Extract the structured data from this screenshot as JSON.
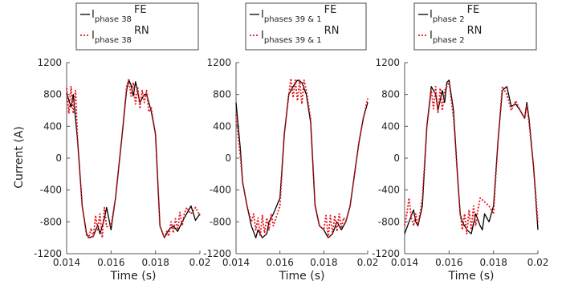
{
  "figure": {
    "ylabel_shared": "Current (A)"
  },
  "style": {
    "fe_color": "#000000",
    "rn_color": "#e8141c",
    "axis_color": "#555555"
  },
  "chart_data": [
    {
      "type": "line",
      "xlabel": "Time (s)",
      "ylabel": "Current (A)",
      "xlim": [
        0.014,
        0.02
      ],
      "ylim": [
        -1200,
        1200
      ],
      "xticks": [
        0.014,
        0.016,
        0.018,
        0.02
      ],
      "xtick_labels": [
        "0.014",
        "0.016",
        "0.018",
        "0.02"
      ],
      "yticks": [
        -1200,
        -800,
        -400,
        0,
        400,
        800,
        1200
      ],
      "ytick_labels": [
        "-1200",
        "-800",
        "-400",
        "0",
        "400",
        "800",
        "1200"
      ],
      "legend": [
        {
          "main": "I",
          "sub": "phase 38",
          "sup": "FE",
          "style": "solid"
        },
        {
          "main": "I",
          "sub": "phase 38",
          "sup": "RN",
          "style": "dotted"
        }
      ],
      "series": [
        {
          "name": "FE",
          "x": [
            0.014,
            0.0142,
            0.0143,
            0.0145,
            0.0147,
            0.0149,
            0.015,
            0.0152,
            0.0154,
            0.0155,
            0.0157,
            0.0158,
            0.016,
            0.0162,
            0.0165,
            0.0167,
            0.0168,
            0.0169,
            0.017,
            0.0171,
            0.0173,
            0.0175,
            0.0176,
            0.0178,
            0.018,
            0.0182,
            0.0184,
            0.0185,
            0.0186,
            0.0188,
            0.019,
            0.0192,
            0.0194,
            0.0196,
            0.0198,
            0.02
          ],
          "y": [
            820,
            640,
            800,
            200,
            -600,
            -950,
            -1000,
            -980,
            -840,
            -950,
            -760,
            -620,
            -900,
            -500,
            300,
            850,
            980,
            920,
            780,
            960,
            700,
            800,
            800,
            600,
            300,
            -850,
            -1000,
            -950,
            -900,
            -850,
            -920,
            -800,
            -700,
            -600,
            -780,
            -700
          ]
        },
        {
          "name": "RN",
          "x": [
            0.014,
            0.0141,
            0.0142,
            0.0143,
            0.0144,
            0.0145,
            0.0147,
            0.0149,
            0.015,
            0.0151,
            0.0152,
            0.0153,
            0.0154,
            0.0155,
            0.0156,
            0.0157,
            0.0158,
            0.016,
            0.0162,
            0.0165,
            0.0167,
            0.0168,
            0.0169,
            0.017,
            0.0171,
            0.0172,
            0.0173,
            0.0174,
            0.0175,
            0.0176,
            0.0177,
            0.0178,
            0.018,
            0.0182,
            0.0184,
            0.0185,
            0.0186,
            0.0187,
            0.0188,
            0.0189,
            0.019,
            0.0191,
            0.0192,
            0.0193,
            0.0194,
            0.0196,
            0.0198,
            0.02
          ],
          "y": [
            880,
            560,
            900,
            560,
            850,
            200,
            -600,
            -980,
            -1000,
            -880,
            -1000,
            -720,
            -900,
            -700,
            -1000,
            -620,
            -860,
            -850,
            -500,
            300,
            900,
            1000,
            780,
            950,
            680,
            900,
            620,
            850,
            700,
            850,
            580,
            650,
            300,
            -850,
            -1000,
            -920,
            -980,
            -800,
            -940,
            -760,
            -900,
            -680,
            -850,
            -700,
            -620,
            -700,
            -620,
            -720
          ]
        }
      ]
    },
    {
      "type": "line",
      "xlabel": "Time (s)",
      "ylabel": "",
      "xlim": [
        0.014,
        0.02
      ],
      "ylim": [
        -1200,
        1200
      ],
      "xticks": [
        0.014,
        0.016,
        0.018,
        0.02
      ],
      "xtick_labels": [
        "0.014",
        "0.016",
        "0.018",
        "0.02"
      ],
      "yticks": [
        -1200,
        -800,
        -400,
        0,
        400,
        800,
        1200
      ],
      "ytick_labels": [
        "-1200",
        "-800",
        "-400",
        "0",
        "400",
        "800",
        "1200"
      ],
      "legend": [
        {
          "main": "I",
          "sub": "phases 39 & 1",
          "sup": "FE",
          "style": "solid"
        },
        {
          "main": "I",
          "sub": "phases 39 & 1",
          "sup": "RN",
          "style": "dotted"
        }
      ],
      "series": [
        {
          "name": "FE",
          "x": [
            0.014,
            0.0142,
            0.0143,
            0.0145,
            0.0147,
            0.0149,
            0.015,
            0.0152,
            0.0154,
            0.0155,
            0.0157,
            0.016,
            0.0162,
            0.0164,
            0.0166,
            0.0168,
            0.017,
            0.0172,
            0.0174,
            0.0176,
            0.0178,
            0.018,
            0.0182,
            0.0184,
            0.0186,
            0.0188,
            0.019,
            0.0192,
            0.0194,
            0.0196,
            0.0198,
            0.02
          ],
          "y": [
            700,
            100,
            -300,
            -600,
            -850,
            -1000,
            -900,
            -1000,
            -950,
            -800,
            -700,
            -500,
            300,
            800,
            900,
            980,
            950,
            800,
            450,
            -600,
            -850,
            -900,
            -1000,
            -950,
            -800,
            -900,
            -800,
            -600,
            -200,
            200,
            500,
            700
          ]
        },
        {
          "name": "RN",
          "x": [
            0.014,
            0.0142,
            0.0143,
            0.0145,
            0.0147,
            0.0148,
            0.0149,
            0.015,
            0.0151,
            0.0152,
            0.0153,
            0.0154,
            0.0155,
            0.0156,
            0.0157,
            0.016,
            0.0162,
            0.0164,
            0.0165,
            0.0166,
            0.0167,
            0.0168,
            0.0169,
            0.017,
            0.0171,
            0.0172,
            0.0174,
            0.0176,
            0.0178,
            0.018,
            0.0181,
            0.0182,
            0.0183,
            0.0184,
            0.0185,
            0.0186,
            0.0187,
            0.0188,
            0.0189,
            0.019,
            0.0192,
            0.0194,
            0.0196,
            0.0198,
            0.02
          ],
          "y": [
            550,
            0,
            -300,
            -600,
            -800,
            -700,
            -900,
            -750,
            -980,
            -720,
            -940,
            -750,
            -900,
            -700,
            -850,
            -600,
            300,
            780,
            1000,
            760,
            980,
            720,
            980,
            680,
            980,
            850,
            500,
            -580,
            -850,
            -900,
            -720,
            -1000,
            -720,
            -950,
            -720,
            -920,
            -700,
            -880,
            -750,
            -800,
            -600,
            -200,
            200,
            500,
            750
          ]
        }
      ]
    },
    {
      "type": "line",
      "xlabel": "Time (s)",
      "ylabel": "",
      "xlim": [
        0.014,
        0.02
      ],
      "ylim": [
        -1200,
        1200
      ],
      "xticks": [
        0.014,
        0.016,
        0.018,
        0.02
      ],
      "xtick_labels": [
        "0.014",
        "0.016",
        "0.018",
        "0.02"
      ],
      "yticks": [
        -1200,
        -800,
        -400,
        0,
        400,
        800,
        1200
      ],
      "ytick_labels": [
        "-1200",
        "-800",
        "-400",
        "0",
        "400",
        "800",
        "1200"
      ],
      "legend": [
        {
          "main": "I",
          "sub": "phase 2",
          "sup": "FE",
          "style": "solid"
        },
        {
          "main": "I",
          "sub": "phase 2",
          "sup": "RN",
          "style": "dotted"
        }
      ],
      "series": [
        {
          "name": "FE",
          "x": [
            0.014,
            0.0142,
            0.0144,
            0.0145,
            0.0146,
            0.0148,
            0.015,
            0.0152,
            0.0154,
            0.0155,
            0.0157,
            0.0158,
            0.0159,
            0.016,
            0.0162,
            0.0164,
            0.0165,
            0.0166,
            0.0168,
            0.017,
            0.0172,
            0.0174,
            0.0175,
            0.0176,
            0.0178,
            0.018,
            0.0182,
            0.0184,
            0.0186,
            0.0188,
            0.019,
            0.0192,
            0.0194,
            0.0195,
            0.0196,
            0.0198,
            0.02
          ],
          "y": [
            -950,
            -800,
            -650,
            -800,
            -850,
            -600,
            400,
            900,
            800,
            600,
            850,
            700,
            950,
            980,
            600,
            -300,
            -700,
            -800,
            -900,
            -950,
            -700,
            -850,
            -900,
            -700,
            -800,
            -600,
            200,
            850,
            900,
            650,
            680,
            600,
            500,
            700,
            500,
            -100,
            -900
          ]
        },
        {
          "name": "RN",
          "x": [
            0.014,
            0.0141,
            0.0142,
            0.0143,
            0.0144,
            0.0145,
            0.0146,
            0.0148,
            0.015,
            0.0152,
            0.0153,
            0.0154,
            0.0155,
            0.0156,
            0.0157,
            0.0158,
            0.0159,
            0.016,
            0.0162,
            0.0164,
            0.0165,
            0.0166,
            0.0167,
            0.0168,
            0.0169,
            0.017,
            0.0171,
            0.0172,
            0.0173,
            0.0174,
            0.0176,
            0.0178,
            0.018,
            0.0182,
            0.0184,
            0.0186,
            0.0188,
            0.019,
            0.0192,
            0.0194,
            0.0195,
            0.0196,
            0.0198,
            0.02
          ],
          "y": [
            -850,
            -700,
            -500,
            -750,
            -850,
            -700,
            -850,
            -500,
            400,
            850,
            620,
            900,
            560,
            880,
            600,
            850,
            900,
            950,
            500,
            -300,
            -700,
            -900,
            -700,
            -950,
            -650,
            -900,
            -600,
            -850,
            -650,
            -500,
            -550,
            -600,
            -700,
            200,
            900,
            800,
            600,
            720,
            600,
            500,
            660,
            450,
            -100,
            -800
          ]
        }
      ]
    }
  ]
}
